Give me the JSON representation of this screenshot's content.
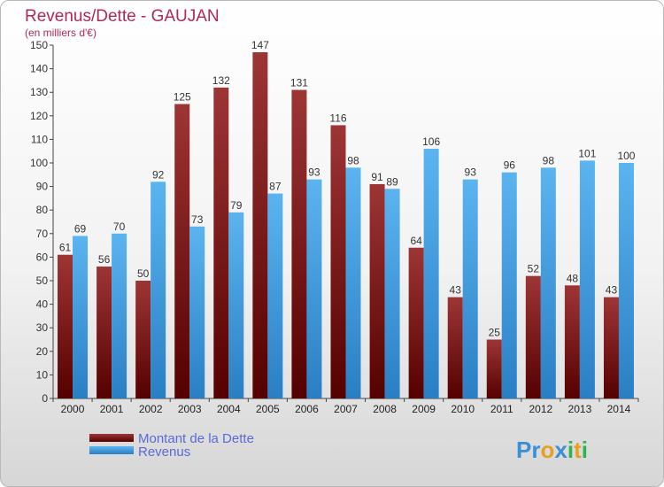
{
  "chart_data": {
    "type": "bar",
    "title": "Revenus/Dette - GAUJAN",
    "subtitle": "(en milliers d'€)",
    "categories": [
      "2000",
      "2001",
      "2002",
      "2003",
      "2004",
      "2005",
      "2006",
      "2007",
      "2008",
      "2009",
      "2010",
      "2011",
      "2012",
      "2013",
      "2014"
    ],
    "series": [
      {
        "name": "Montant de la Dette",
        "color": "#8b1c1c",
        "values": [
          61,
          56,
          50,
          125,
          132,
          147,
          131,
          116,
          91,
          64,
          43,
          25,
          52,
          48,
          43
        ]
      },
      {
        "name": "Revenus",
        "color": "#3a9ae0",
        "values": [
          69,
          70,
          92,
          73,
          79,
          87,
          93,
          98,
          89,
          106,
          93,
          96,
          98,
          101,
          100
        ]
      }
    ],
    "yticks": [
      0,
      10,
      20,
      30,
      40,
      50,
      60,
      70,
      80,
      90,
      100,
      110,
      120,
      130,
      140,
      150
    ],
    "ylim": [
      0,
      150
    ],
    "grid": false,
    "legend_position": "bottom-left"
  },
  "branding": {
    "logo_text": "Proxiti"
  }
}
